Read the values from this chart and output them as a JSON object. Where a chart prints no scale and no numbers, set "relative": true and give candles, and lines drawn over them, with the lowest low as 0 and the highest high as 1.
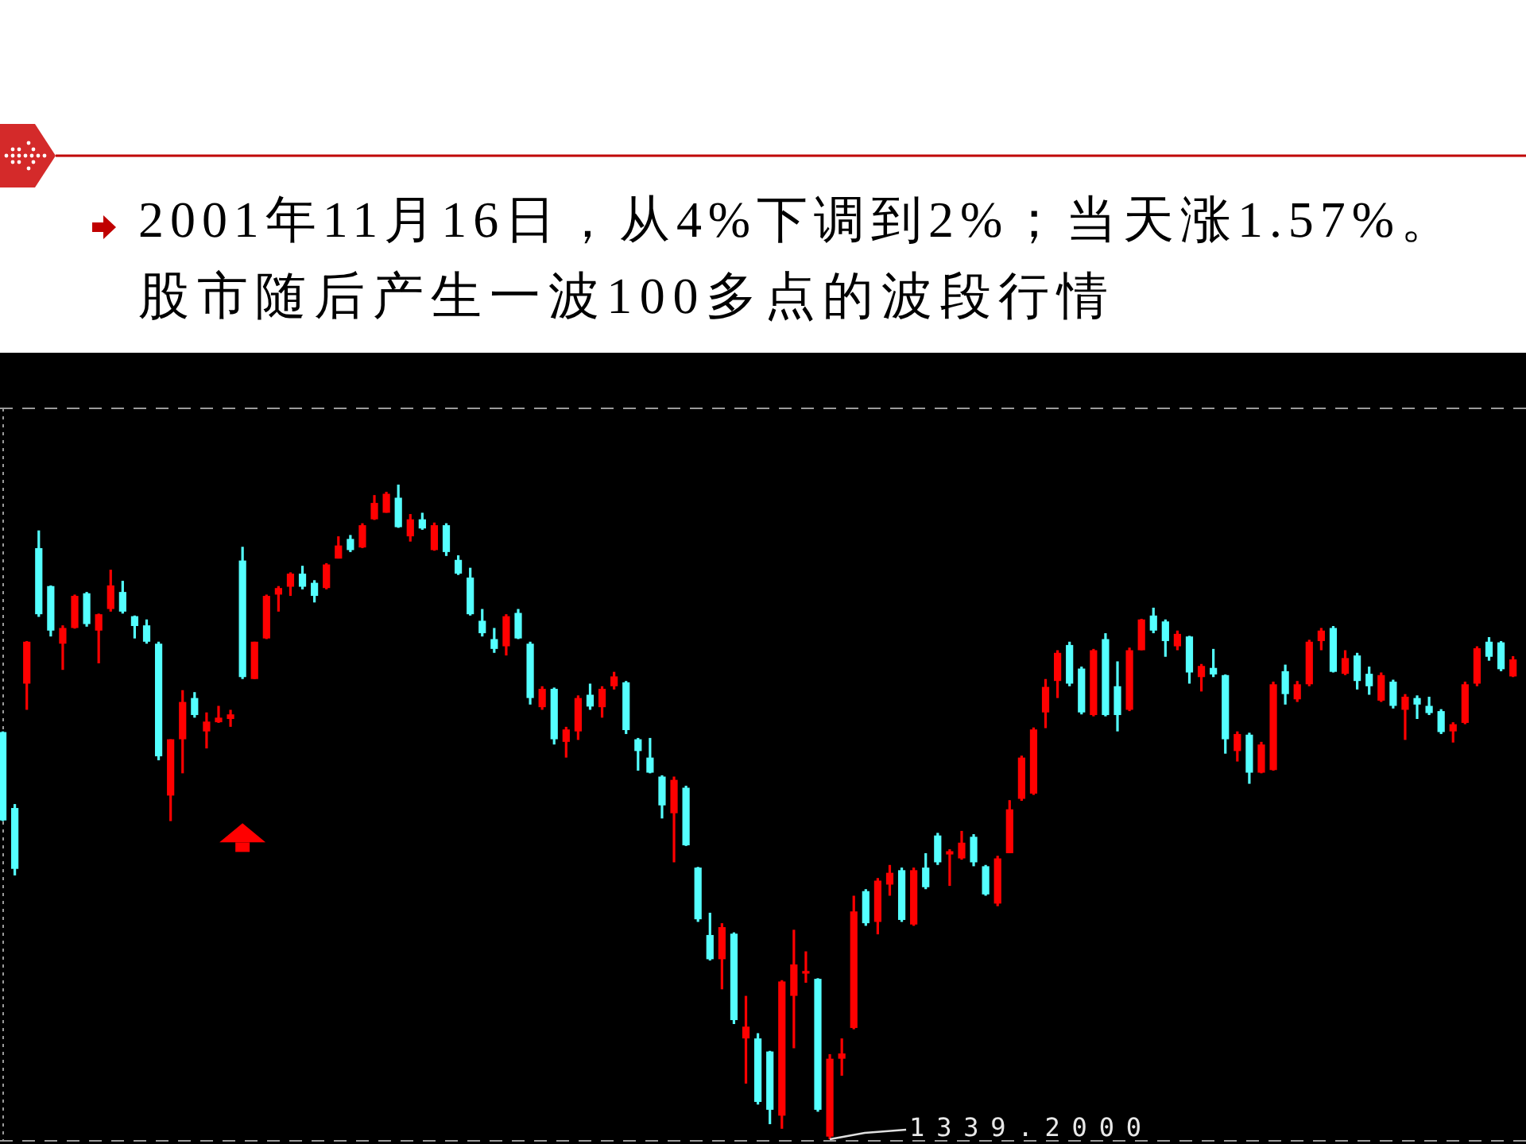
{
  "chart_data": {
    "type": "candlestick",
    "title": "2001年11月16日，从4%下调到2%；当天涨1.57%。",
    "subtitle": "股市随后产生一波100多点的波段行情",
    "relative": true,
    "categories": [
      null,
      null,
      null,
      null,
      null,
      null,
      null,
      null,
      null,
      null,
      null,
      null,
      null,
      null,
      null,
      null,
      null,
      null,
      null,
      null,
      null,
      null,
      null,
      null,
      null,
      null,
      null,
      null,
      null,
      null,
      null,
      null,
      null,
      null,
      null,
      null,
      null,
      null,
      null,
      null,
      null,
      null,
      null,
      null,
      null,
      null,
      null,
      null,
      null,
      null,
      null,
      null,
      null,
      null,
      null,
      null,
      null,
      null,
      null,
      null,
      null,
      null,
      null,
      null,
      null,
      null,
      null,
      null,
      null,
      null,
      null,
      null,
      null,
      null,
      null,
      null,
      null,
      null,
      null,
      null,
      null,
      null,
      null,
      null,
      null,
      null,
      null,
      null,
      null,
      null,
      null,
      null,
      null,
      null,
      null,
      null,
      null,
      null,
      null,
      null,
      null,
      null,
      null,
      null,
      null,
      null,
      null,
      null,
      null,
      null,
      null,
      null,
      null,
      null,
      null,
      null,
      null,
      null,
      null,
      null,
      null,
      null,
      null,
      null,
      null,
      null,
      null
    ],
    "ohlc": [
      [
        0.622,
        0.623,
        0.486,
        0.487
      ],
      [
        0.506,
        0.512,
        0.403,
        0.413
      ],
      [
        0.696,
        0.761,
        0.656,
        0.76
      ],
      [
        0.903,
        0.93,
        0.798,
        0.802
      ],
      [
        0.845,
        0.846,
        0.768,
        0.777
      ],
      [
        0.757,
        0.785,
        0.717,
        0.781
      ],
      [
        0.781,
        0.832,
        0.78,
        0.83
      ],
      [
        0.834,
        0.836,
        0.783,
        0.787
      ],
      [
        0.777,
        0.803,
        0.727,
        0.802
      ],
      [
        0.81,
        0.87,
        0.806,
        0.846
      ],
      [
        0.836,
        0.853,
        0.803,
        0.806
      ],
      [
        0.799,
        0.8,
        0.765,
        0.784
      ],
      [
        0.785,
        0.794,
        0.757,
        0.76
      ],
      [
        0.757,
        0.76,
        0.579,
        0.585
      ],
      [
        0.525,
        0.611,
        0.486,
        0.611
      ],
      [
        0.611,
        0.686,
        0.559,
        0.668
      ],
      [
        0.674,
        0.683,
        0.644,
        0.648
      ],
      [
        0.623,
        0.652,
        0.597,
        0.638
      ],
      [
        0.637,
        0.662,
        0.636,
        0.644
      ],
      [
        0.642,
        0.656,
        0.63,
        0.649
      ],
      [
        0.884,
        0.905,
        0.703,
        0.706
      ],
      [
        0.703,
        0.76,
        0.703,
        0.76
      ],
      [
        0.765,
        0.832,
        0.764,
        0.83
      ],
      [
        0.832,
        0.845,
        0.806,
        0.842
      ],
      [
        0.844,
        0.866,
        0.83,
        0.864
      ],
      [
        0.864,
        0.876,
        0.84,
        0.844
      ],
      [
        0.85,
        0.854,
        0.82,
        0.83
      ],
      [
        0.842,
        0.88,
        0.84,
        0.878
      ],
      [
        0.887,
        0.921,
        0.887,
        0.907
      ],
      [
        0.917,
        0.923,
        0.897,
        0.9
      ],
      [
        0.904,
        0.941,
        0.903,
        0.938
      ],
      [
        0.947,
        0.984,
        0.946,
        0.972
      ],
      [
        0.957,
        0.989,
        0.957,
        0.986
      ],
      [
        0.98,
        1.0,
        0.934,
        0.935
      ],
      [
        0.921,
        0.955,
        0.913,
        0.947
      ],
      [
        0.947,
        0.957,
        0.931,
        0.933
      ],
      [
        0.9,
        0.942,
        0.899,
        0.938
      ],
      [
        0.938,
        0.941,
        0.891,
        0.897
      ],
      [
        0.885,
        0.892,
        0.862,
        0.864
      ],
      [
        0.858,
        0.873,
        0.8,
        0.802
      ],
      [
        0.792,
        0.81,
        0.768,
        0.773
      ],
      [
        0.764,
        0.781,
        0.743,
        0.749
      ],
      [
        0.753,
        0.802,
        0.739,
        0.799
      ],
      [
        0.804,
        0.81,
        0.764,
        0.765
      ],
      [
        0.757,
        0.76,
        0.664,
        0.674
      ],
      [
        0.66,
        0.692,
        0.656,
        0.688
      ],
      [
        0.688,
        0.69,
        0.603,
        0.611
      ],
      [
        0.607,
        0.63,
        0.583,
        0.626
      ],
      [
        0.623,
        0.678,
        0.61,
        0.674
      ],
      [
        0.679,
        0.696,
        0.656,
        0.661
      ],
      [
        0.66,
        0.692,
        0.644,
        0.688
      ],
      [
        0.692,
        0.714,
        0.687,
        0.707
      ],
      [
        0.698,
        0.7,
        0.619,
        0.625
      ],
      [
        0.611,
        0.613,
        0.563,
        0.593
      ],
      [
        0.583,
        0.613,
        0.559,
        0.56
      ],
      [
        0.554,
        0.556,
        0.49,
        0.51
      ],
      [
        0.498,
        0.554,
        0.423,
        0.549
      ],
      [
        0.537,
        0.54,
        0.448,
        0.449
      ],
      [
        0.415,
        0.416,
        0.332,
        0.336
      ],
      [
        0.312,
        0.346,
        0.273,
        0.275
      ],
      [
        0.275,
        0.33,
        0.229,
        0.324
      ],
      [
        0.314,
        0.316,
        0.176,
        0.182
      ],
      [
        0.154,
        0.219,
        0.085,
        0.172
      ],
      [
        0.154,
        0.162,
        0.053,
        0.057
      ],
      [
        0.134,
        0.135,
        0.023,
        0.045
      ],
      [
        0.036,
        0.243,
        0.016,
        0.241
      ],
      [
        0.219,
        0.32,
        0.139,
        0.267
      ],
      [
        0.253,
        0.287,
        0.239,
        0.257
      ],
      [
        0.245,
        0.246,
        0.042,
        0.045
      ],
      [
        0.004,
        0.13,
        0.0,
        0.123
      ],
      [
        0.123,
        0.154,
        0.097,
        0.131
      ],
      [
        0.17,
        0.372,
        0.168,
        0.348
      ],
      [
        0.379,
        0.382,
        0.326,
        0.33
      ],
      [
        0.332,
        0.399,
        0.313,
        0.395
      ],
      [
        0.389,
        0.419,
        0.372,
        0.407
      ],
      [
        0.411,
        0.415,
        0.332,
        0.335
      ],
      [
        0.328,
        0.415,
        0.326,
        0.411
      ],
      [
        0.415,
        0.437,
        0.382,
        0.385
      ],
      [
        0.464,
        0.468,
        0.419,
        0.423
      ],
      [
        0.435,
        0.443,
        0.387,
        0.44
      ],
      [
        0.429,
        0.471,
        0.427,
        0.453
      ],
      [
        0.462,
        0.466,
        0.417,
        0.423
      ],
      [
        0.417,
        0.419,
        0.372,
        0.374
      ],
      [
        0.36,
        0.433,
        0.356,
        0.429
      ],
      [
        0.437,
        0.518,
        0.437,
        0.504
      ],
      [
        0.52,
        0.586,
        0.517,
        0.583
      ],
      [
        0.528,
        0.629,
        0.526,
        0.626
      ],
      [
        0.652,
        0.703,
        0.628,
        0.691
      ],
      [
        0.7,
        0.747,
        0.674,
        0.743
      ],
      [
        0.755,
        0.76,
        0.692,
        0.696
      ],
      [
        0.719,
        0.722,
        0.649,
        0.652
      ],
      [
        0.648,
        0.749,
        0.646,
        0.747
      ],
      [
        0.764,
        0.773,
        0.646,
        0.648
      ],
      [
        0.692,
        0.73,
        0.623,
        0.648
      ],
      [
        0.656,
        0.751,
        0.654,
        0.747
      ],
      [
        0.747,
        0.795,
        0.747,
        0.794
      ],
      [
        0.8,
        0.812,
        0.773,
        0.777
      ],
      [
        0.791,
        0.794,
        0.737,
        0.761
      ],
      [
        0.753,
        0.777,
        0.747,
        0.772
      ],
      [
        0.768,
        0.769,
        0.696,
        0.713
      ],
      [
        0.706,
        0.726,
        0.684,
        0.723
      ],
      [
        0.72,
        0.749,
        0.706,
        0.71
      ],
      [
        0.709,
        0.71,
        0.589,
        0.611
      ],
      [
        0.593,
        0.623,
        0.577,
        0.619
      ],
      [
        0.618,
        0.621,
        0.543,
        0.56
      ],
      [
        0.56,
        0.607,
        0.559,
        0.603
      ],
      [
        0.564,
        0.699,
        0.563,
        0.695
      ],
      [
        0.715,
        0.725,
        0.664,
        0.68
      ],
      [
        0.672,
        0.7,
        0.668,
        0.695
      ],
      [
        0.695,
        0.763,
        0.692,
        0.76
      ],
      [
        0.761,
        0.781,
        0.747,
        0.777
      ],
      [
        0.781,
        0.784,
        0.713,
        0.714
      ],
      [
        0.711,
        0.747,
        0.709,
        0.735
      ],
      [
        0.739,
        0.743,
        0.687,
        0.7
      ],
      [
        0.711,
        0.722,
        0.679,
        0.692
      ],
      [
        0.67,
        0.713,
        0.668,
        0.709
      ],
      [
        0.699,
        0.702,
        0.658,
        0.662
      ],
      [
        0.656,
        0.68,
        0.61,
        0.676
      ],
      [
        0.674,
        0.678,
        0.642,
        0.664
      ],
      [
        0.662,
        0.676,
        0.648,
        0.651
      ],
      [
        0.654,
        0.657,
        0.619,
        0.622
      ],
      [
        0.623,
        0.637,
        0.606,
        0.634
      ],
      [
        0.636,
        0.699,
        0.634,
        0.695
      ],
      [
        0.696,
        0.753,
        0.692,
        0.75
      ],
      [
        0.76,
        0.767,
        0.731,
        0.737
      ],
      [
        0.759,
        0.761,
        0.715,
        0.718
      ],
      [
        0.707,
        0.738,
        0.706,
        0.733
      ]
    ],
    "colors": [
      "#54ffff",
      "#54ffff",
      "#ff0000",
      "#54ffff",
      "#54ffff",
      "#ff0000",
      "#ff0000",
      "#54ffff",
      "#ff0000",
      "#ff0000",
      "#54ffff",
      "#54ffff",
      "#54ffff",
      "#54ffff",
      "#ff0000",
      "#ff0000",
      "#54ffff",
      "#ff0000",
      "#ff0000",
      "#ff0000",
      "#54ffff",
      "#ff0000",
      "#ff0000",
      "#ff0000",
      "#ff0000",
      "#54ffff",
      "#54ffff",
      "#ff0000",
      "#ff0000",
      "#54ffff",
      "#ff0000",
      "#ff0000",
      "#ff0000",
      "#54ffff",
      "#ff0000",
      "#54ffff",
      "#ff0000",
      "#54ffff",
      "#54ffff",
      "#54ffff",
      "#54ffff",
      "#54ffff",
      "#ff0000",
      "#54ffff",
      "#54ffff",
      "#ff0000",
      "#54ffff",
      "#ff0000",
      "#ff0000",
      "#54ffff",
      "#ff0000",
      "#ff0000",
      "#54ffff",
      "#54ffff",
      "#54ffff",
      "#54ffff",
      "#ff0000",
      "#54ffff",
      "#54ffff",
      "#54ffff",
      "#ff0000",
      "#54ffff",
      "#ff0000",
      "#54ffff",
      "#54ffff",
      "#ff0000",
      "#ff0000",
      "#ff0000",
      "#54ffff",
      "#ff0000",
      "#ff0000",
      "#ff0000",
      "#54ffff",
      "#ff0000",
      "#ff0000",
      "#54ffff",
      "#ff0000",
      "#54ffff",
      "#54ffff",
      "#ff0000",
      "#ff0000",
      "#54ffff",
      "#54ffff",
      "#ff0000",
      "#ff0000",
      "#ff0000",
      "#ff0000",
      "#ff0000",
      "#ff0000",
      "#54ffff",
      "#54ffff",
      "#ff0000",
      "#54ffff",
      "#54ffff",
      "#ff0000",
      "#ff0000",
      "#54ffff",
      "#54ffff",
      "#ff0000",
      "#54ffff",
      "#ff0000",
      "#54ffff",
      "#54ffff",
      "#ff0000",
      "#54ffff",
      "#ff0000",
      "#ff0000",
      "#54ffff",
      "#ff0000",
      "#ff0000",
      "#ff0000",
      "#54ffff",
      "#ff0000",
      "#54ffff",
      "#54ffff",
      "#ff0000",
      "#54ffff",
      "#ff0000",
      "#54ffff",
      "#54ffff",
      "#54ffff",
      "#ff0000",
      "#ff0000",
      "#ff0000",
      "#54ffff",
      "#54ffff",
      "#ff0000"
    ],
    "series": [
      {
        "type": "scatter",
        "color": "#ff0000",
        "values": [
          null,
          null,
          null,
          null,
          null,
          null,
          null,
          null,
          null,
          null,
          null,
          null,
          null,
          null,
          null,
          null,
          null,
          null,
          null,
          null,
          0.468,
          null,
          null,
          null,
          null,
          null,
          null,
          null,
          null,
          null,
          null,
          null,
          null,
          null,
          null,
          null,
          null,
          null,
          null,
          null,
          null,
          null,
          null,
          null,
          null,
          null,
          null,
          null,
          null,
          null,
          null,
          null,
          null,
          null,
          null,
          null,
          null,
          null,
          null,
          null,
          null,
          null,
          null,
          null,
          null,
          null,
          null,
          null,
          null,
          null,
          null,
          null,
          null,
          null,
          null,
          null,
          null,
          null,
          null,
          null,
          null,
          null,
          null,
          null,
          null,
          null,
          null,
          null,
          null,
          null,
          null,
          null,
          null,
          null,
          null,
          null,
          null,
          null,
          null,
          null,
          null,
          null,
          null,
          null,
          null,
          null,
          null,
          null,
          null,
          null,
          null,
          null,
          null,
          null,
          null,
          null,
          null,
          null,
          null,
          null,
          null,
          null,
          null,
          null,
          null,
          null,
          null
        ]
      }
    ],
    "marker": "triangle",
    "annotations": [
      "1339.2000"
    ]
  }
}
